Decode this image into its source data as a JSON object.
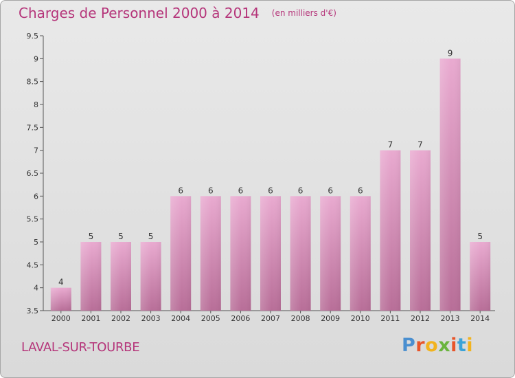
{
  "header": {
    "title": "Charges de Personnel 2000 à 2014",
    "subtitle": "(en milliers d'€)"
  },
  "footer": {
    "commune": "LAVAL-SUR-TOURBE",
    "logo": "Proxiti"
  },
  "colors": {
    "title": "#b5357a",
    "bar_top": "#e9aad0",
    "bar_bottom": "#b86e98",
    "background": "#e2e2e2",
    "logo_letters": [
      "#4a8fd0",
      "#e8552a",
      "#f2b31e",
      "#6ab43e",
      "#e8552a",
      "#3aa3d8",
      "#f2b31e"
    ]
  },
  "chart_data": {
    "type": "bar",
    "title": "Charges de Personnel 2000 à 2014",
    "subtitle": "(en milliers d'€)",
    "categories": [
      "2000",
      "2001",
      "2002",
      "2003",
      "2004",
      "2005",
      "2006",
      "2007",
      "2008",
      "2009",
      "2010",
      "2011",
      "2012",
      "2013",
      "2014"
    ],
    "values": [
      4,
      5,
      5,
      5,
      6,
      6,
      6,
      6,
      6,
      6,
      6,
      7,
      7,
      9,
      5
    ],
    "ylim": [
      3.5,
      9.5
    ],
    "yticks": [
      "3.5",
      "4",
      "4.5",
      "5",
      "5.5",
      "6",
      "6.5",
      "7",
      "7.5",
      "8",
      "8.5",
      "9",
      "9.5"
    ],
    "xlabel": "",
    "ylabel": "",
    "grid": false,
    "data_labels": true
  }
}
